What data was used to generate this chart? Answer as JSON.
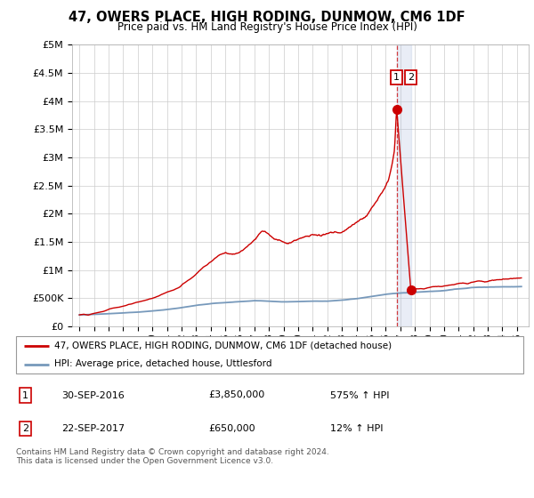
{
  "title": "47, OWERS PLACE, HIGH RODING, DUNMOW, CM6 1DF",
  "subtitle": "Price paid vs. HM Land Registry's House Price Index (HPI)",
  "legend_line1": "47, OWERS PLACE, HIGH RODING, DUNMOW, CM6 1DF (detached house)",
  "legend_line2": "HPI: Average price, detached house, Uttlesford",
  "transaction1_date": "30-SEP-2016",
  "transaction1_price": "£3,850,000",
  "transaction1_hpi": "575% ↑ HPI",
  "transaction2_date": "22-SEP-2017",
  "transaction2_price": "£650,000",
  "transaction2_hpi": "12% ↑ HPI",
  "footer": "Contains HM Land Registry data © Crown copyright and database right 2024.\nThis data is licensed under the Open Government Licence v3.0.",
  "red_color": "#cc0000",
  "blue_color": "#7799bb",
  "grid_color": "#cccccc",
  "marker_box_color": "#cc0000",
  "ylim": [
    0,
    5000000
  ],
  "yticks": [
    0,
    500000,
    1000000,
    1500000,
    2000000,
    2500000,
    3000000,
    3500000,
    4000000,
    4500000,
    5000000
  ],
  "ytick_labels": [
    "£0",
    "£500K",
    "£1M",
    "£1.5M",
    "£2M",
    "£2.5M",
    "£3M",
    "£3.5M",
    "£4M",
    "£4.5M",
    "£5M"
  ],
  "xlim_start": 1994.5,
  "xlim_end": 2025.8,
  "transaction1_x": 2016.75,
  "transaction2_x": 2017.72,
  "transaction1_y": 3850000,
  "transaction2_y": 650000,
  "red_anchors": [
    [
      1995.0,
      200000
    ],
    [
      1995.3,
      210000
    ],
    [
      1995.6,
      195000
    ],
    [
      1995.9,
      220000
    ],
    [
      1996.2,
      240000
    ],
    [
      1996.5,
      260000
    ],
    [
      1996.8,
      280000
    ],
    [
      1997.1,
      310000
    ],
    [
      1997.5,
      330000
    ],
    [
      1997.9,
      350000
    ],
    [
      1998.3,
      380000
    ],
    [
      1998.7,
      400000
    ],
    [
      1999.1,
      430000
    ],
    [
      1999.5,
      460000
    ],
    [
      1999.9,
      490000
    ],
    [
      2000.3,
      530000
    ],
    [
      2000.7,
      570000
    ],
    [
      2001.1,
      610000
    ],
    [
      2001.5,
      650000
    ],
    [
      2001.9,
      700000
    ],
    [
      2002.3,
      780000
    ],
    [
      2002.7,
      860000
    ],
    [
      2003.1,
      950000
    ],
    [
      2003.5,
      1050000
    ],
    [
      2003.9,
      1130000
    ],
    [
      2004.3,
      1200000
    ],
    [
      2004.7,
      1280000
    ],
    [
      2005.0,
      1320000
    ],
    [
      2005.3,
      1300000
    ],
    [
      2005.6,
      1280000
    ],
    [
      2005.9,
      1310000
    ],
    [
      2006.2,
      1360000
    ],
    [
      2006.5,
      1420000
    ],
    [
      2006.8,
      1500000
    ],
    [
      2007.1,
      1580000
    ],
    [
      2007.3,
      1650000
    ],
    [
      2007.5,
      1700000
    ],
    [
      2007.7,
      1680000
    ],
    [
      2008.0,
      1620000
    ],
    [
      2008.3,
      1560000
    ],
    [
      2008.6,
      1520000
    ],
    [
      2008.9,
      1490000
    ],
    [
      2009.2,
      1470000
    ],
    [
      2009.5,
      1490000
    ],
    [
      2009.8,
      1520000
    ],
    [
      2010.1,
      1550000
    ],
    [
      2010.4,
      1580000
    ],
    [
      2010.7,
      1600000
    ],
    [
      2011.0,
      1640000
    ],
    [
      2011.3,
      1620000
    ],
    [
      2011.6,
      1600000
    ],
    [
      2011.9,
      1620000
    ],
    [
      2012.2,
      1640000
    ],
    [
      2012.5,
      1650000
    ],
    [
      2012.8,
      1660000
    ],
    [
      2013.1,
      1700000
    ],
    [
      2013.5,
      1760000
    ],
    [
      2013.9,
      1820000
    ],
    [
      2014.3,
      1900000
    ],
    [
      2014.7,
      1980000
    ],
    [
      2015.0,
      2100000
    ],
    [
      2015.3,
      2200000
    ],
    [
      2015.6,
      2320000
    ],
    [
      2015.9,
      2450000
    ],
    [
      2016.2,
      2600000
    ],
    [
      2016.4,
      2800000
    ],
    [
      2016.6,
      3100000
    ],
    [
      2016.75,
      3850000
    ],
    [
      2017.72,
      650000
    ],
    [
      2018.0,
      660000
    ],
    [
      2018.3,
      670000
    ],
    [
      2018.6,
      665000
    ],
    [
      2018.9,
      680000
    ],
    [
      2019.2,
      690000
    ],
    [
      2019.5,
      700000
    ],
    [
      2019.8,
      710000
    ],
    [
      2020.1,
      720000
    ],
    [
      2020.4,
      730000
    ],
    [
      2020.7,
      740000
    ],
    [
      2021.0,
      760000
    ],
    [
      2021.3,
      770000
    ],
    [
      2021.6,
      760000
    ],
    [
      2021.9,
      780000
    ],
    [
      2022.2,
      790000
    ],
    [
      2022.5,
      800000
    ],
    [
      2022.8,
      790000
    ],
    [
      2023.1,
      810000
    ],
    [
      2023.5,
      820000
    ],
    [
      2023.9,
      830000
    ],
    [
      2024.3,
      840000
    ],
    [
      2024.7,
      850000
    ],
    [
      2025.3,
      860000
    ]
  ],
  "blue_anchors": [
    [
      1995.0,
      200000
    ],
    [
      1996.0,
      210000
    ],
    [
      1997.0,
      222000
    ],
    [
      1998.0,
      235000
    ],
    [
      1999.0,
      250000
    ],
    [
      2000.0,
      270000
    ],
    [
      2001.0,
      295000
    ],
    [
      2002.0,
      330000
    ],
    [
      2003.0,
      370000
    ],
    [
      2004.0,
      400000
    ],
    [
      2005.0,
      420000
    ],
    [
      2006.0,
      435000
    ],
    [
      2007.0,
      455000
    ],
    [
      2008.0,
      445000
    ],
    [
      2009.0,
      430000
    ],
    [
      2010.0,
      440000
    ],
    [
      2011.0,
      445000
    ],
    [
      2012.0,
      445000
    ],
    [
      2013.0,
      460000
    ],
    [
      2014.0,
      490000
    ],
    [
      2015.0,
      530000
    ],
    [
      2016.0,
      570000
    ],
    [
      2017.0,
      590000
    ],
    [
      2017.72,
      600000
    ],
    [
      2018.0,
      605000
    ],
    [
      2019.0,
      615000
    ],
    [
      2020.0,
      630000
    ],
    [
      2021.0,
      660000
    ],
    [
      2022.0,
      690000
    ],
    [
      2023.0,
      695000
    ],
    [
      2024.0,
      700000
    ],
    [
      2025.3,
      705000
    ]
  ]
}
